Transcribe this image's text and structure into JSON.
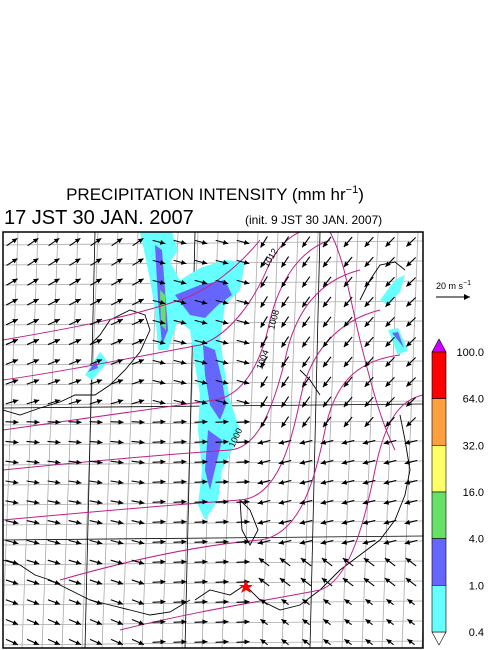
{
  "title": {
    "main": "PRECIPITATION INTENSITY (mm hr",
    "exponent": "−1",
    "end": ")"
  },
  "valid_time": "17 JST 30 JAN. 2007",
  "init_time": "(init. 9 JST 30 JAN. 2007)",
  "wind_scale": {
    "main": "20 m s",
    "exponent": "−1"
  },
  "colorbar": {
    "labels": [
      "100.0",
      "64.0",
      "32.0",
      "16.0",
      "4.0",
      "1.0",
      "0.4"
    ],
    "colors": [
      "#ff0000",
      "#ffa040",
      "#ffff66",
      "#66e066",
      "#6666ff",
      "#66ffff"
    ],
    "over_color": "#cc00ff",
    "under_color": "#ffffff"
  },
  "contour_labels": [
    "1012",
    "1008",
    "1004",
    "1000"
  ]
}
